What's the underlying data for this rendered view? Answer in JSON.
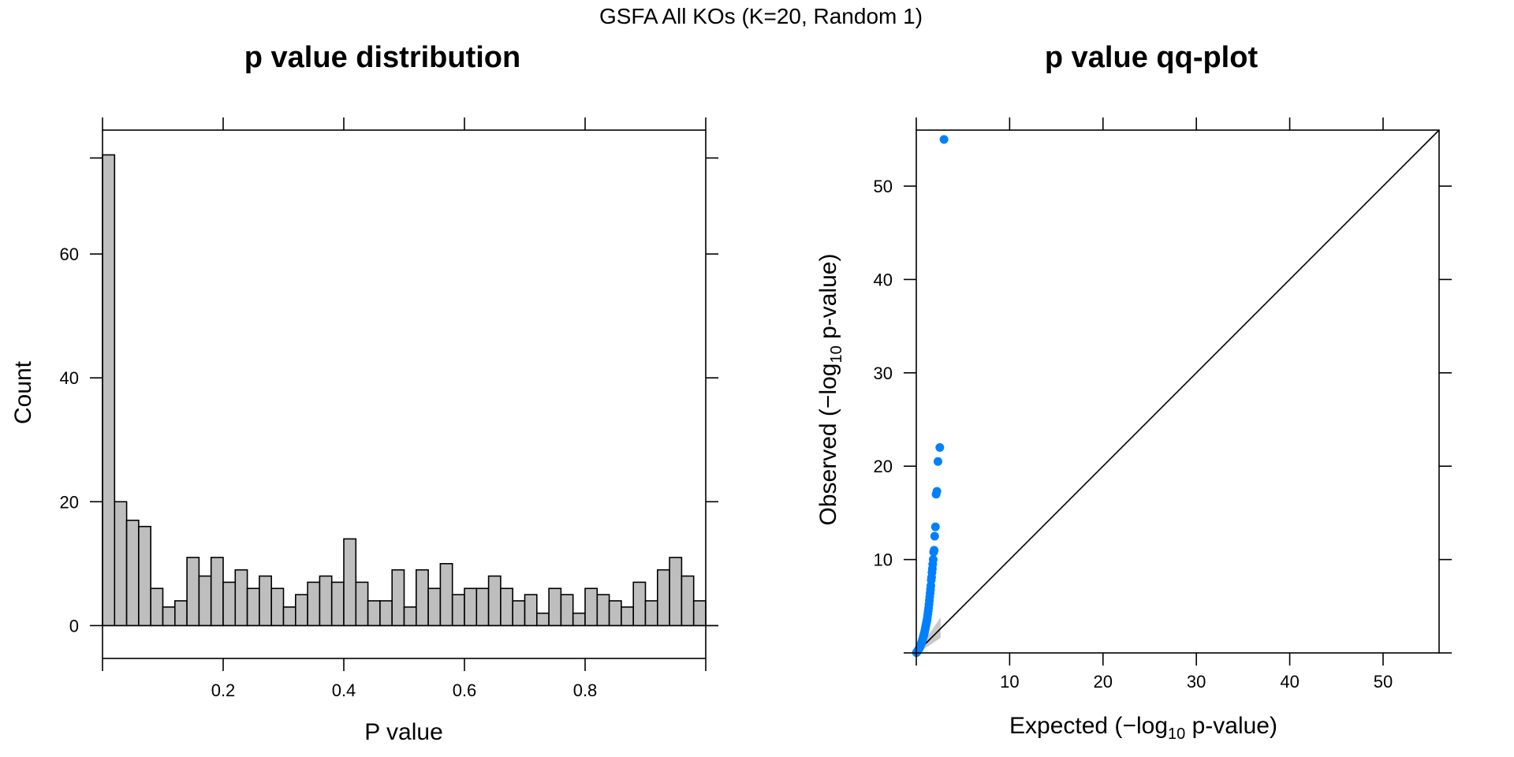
{
  "suptitle": "GSFA All KOs (K=20, Random 1)",
  "chart_data": [
    {
      "type": "bar",
      "title": "p value distribution",
      "xlabel": "P value",
      "ylabel": "Count",
      "xlim": [
        0,
        1
      ],
      "ylim": [
        -5.3,
        80
      ],
      "bin_width": 0.02,
      "x_ticks": [
        0.2,
        0.4,
        0.6,
        0.8
      ],
      "x_tick_labels": [
        "0.2",
        "0.4",
        "0.6",
        "0.8"
      ],
      "y_ticks": [
        0,
        20,
        40,
        60
      ],
      "y_tick_labels": [
        "0",
        "20",
        "40",
        "60"
      ],
      "values": [
        76,
        20,
        17,
        16,
        6,
        3,
        4,
        11,
        8,
        11,
        7,
        9,
        6,
        8,
        6,
        3,
        5,
        7,
        8,
        7,
        14,
        7,
        4,
        4,
        9,
        3,
        9,
        6,
        10,
        5,
        6,
        6,
        8,
        6,
        4,
        5,
        2,
        6,
        5,
        2,
        6,
        5,
        4,
        3,
        7,
        4,
        9,
        11,
        8,
        4
      ],
      "bar_color": "#bebebe",
      "grid": false
    },
    {
      "type": "scatter",
      "title": "p value qq-plot",
      "xlabel_parts": [
        "Expected (",
        "−",
        "log",
        "10",
        " p-value)"
      ],
      "ylabel_parts": [
        "Observed (",
        "−",
        "log",
        "10",
        " p-value)"
      ],
      "xlim": [
        0,
        56
      ],
      "ylim": [
        0,
        56
      ],
      "x_ticks": [
        10,
        20,
        30,
        40,
        50
      ],
      "x_tick_labels": [
        "10",
        "20",
        "30",
        "40",
        "50"
      ],
      "y_ticks": [
        10,
        20,
        30,
        40,
        50
      ],
      "y_tick_labels": [
        "10",
        "20",
        "30",
        "40",
        "50"
      ],
      "reference_line": [
        [
          0,
          0
        ],
        [
          56,
          56
        ]
      ],
      "confidence_band_color": "#c8c8c8",
      "point_color": "#0080ff",
      "grid": false,
      "points": [
        [
          2.97,
          55.0
        ],
        [
          2.52,
          22.0
        ],
        [
          2.32,
          20.5
        ],
        [
          2.21,
          17.3
        ],
        [
          2.12,
          17.0
        ],
        [
          2.05,
          13.5
        ],
        [
          1.97,
          12.5
        ],
        [
          1.91,
          11.0
        ],
        [
          1.86,
          10.8
        ],
        [
          1.81,
          10.0
        ],
        [
          1.76,
          9.5
        ],
        [
          1.72,
          9.0
        ],
        [
          1.68,
          8.6
        ],
        [
          1.64,
          8.1
        ],
        [
          1.6,
          7.8
        ],
        [
          1.56,
          7.2
        ],
        [
          1.52,
          6.8
        ],
        [
          1.48,
          6.4
        ],
        [
          1.44,
          6.0
        ],
        [
          1.4,
          5.6
        ],
        [
          1.36,
          5.2
        ],
        [
          1.32,
          4.8
        ],
        [
          1.28,
          4.5
        ],
        [
          1.24,
          4.2
        ],
        [
          1.2,
          3.9
        ],
        [
          1.16,
          3.6
        ],
        [
          1.12,
          3.4
        ],
        [
          1.08,
          3.2
        ],
        [
          1.04,
          3.0
        ],
        [
          1.0,
          2.8
        ],
        [
          0.96,
          2.6
        ],
        [
          0.92,
          2.4
        ],
        [
          0.88,
          2.2
        ],
        [
          0.84,
          2.05
        ],
        [
          0.8,
          1.9
        ],
        [
          0.76,
          1.75
        ],
        [
          0.72,
          1.6
        ],
        [
          0.68,
          1.45
        ],
        [
          0.64,
          1.3
        ],
        [
          0.6,
          1.18
        ],
        [
          0.56,
          1.06
        ],
        [
          0.52,
          0.95
        ],
        [
          0.48,
          0.85
        ],
        [
          0.44,
          0.75
        ],
        [
          0.4,
          0.66
        ],
        [
          0.36,
          0.57
        ],
        [
          0.32,
          0.49
        ],
        [
          0.28,
          0.42
        ],
        [
          0.24,
          0.35
        ],
        [
          0.2,
          0.29
        ],
        [
          0.16,
          0.23
        ],
        [
          0.12,
          0.17
        ],
        [
          0.08,
          0.11
        ],
        [
          0.05,
          0.07
        ],
        [
          0.02,
          0.03
        ]
      ]
    }
  ]
}
